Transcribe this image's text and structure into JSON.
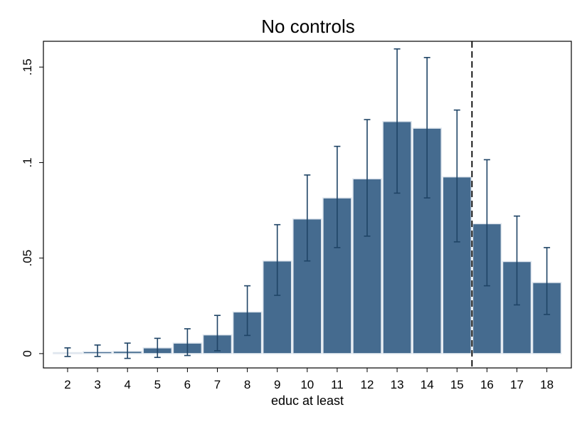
{
  "chart_data": {
    "type": "bar",
    "title": "No controls",
    "xlabel": "educ at least",
    "ylabel": "",
    "categories": [
      "2",
      "3",
      "4",
      "5",
      "6",
      "7",
      "8",
      "9",
      "10",
      "11",
      "12",
      "13",
      "14",
      "15",
      "16",
      "17",
      "18"
    ],
    "values": [
      0.0005,
      0.001,
      0.0012,
      0.003,
      0.0055,
      0.0098,
      0.0218,
      0.0485,
      0.0705,
      0.0815,
      0.0915,
      0.1215,
      0.118,
      0.0925,
      0.068,
      0.0482,
      0.0372
    ],
    "ci_low": [
      -0.0015,
      -0.0015,
      -0.0025,
      -0.002,
      -0.001,
      0.0015,
      0.0095,
      0.0305,
      0.0485,
      0.0555,
      0.0615,
      0.084,
      0.0815,
      0.0585,
      0.0355,
      0.0255,
      0.0205
    ],
    "ci_high": [
      0.003,
      0.0045,
      0.0055,
      0.008,
      0.013,
      0.02,
      0.0355,
      0.0675,
      0.0935,
      0.1085,
      0.1225,
      0.1595,
      0.155,
      0.1275,
      0.1015,
      0.072,
      0.0555
    ],
    "ylim": [
      -0.0075,
      0.1635
    ],
    "yticks": [
      0,
      0.05,
      0.1,
      0.15
    ],
    "ytick_labels": [
      "0",
      ".05",
      ".1",
      ".15"
    ],
    "reference_line": {
      "x_after_category": "15",
      "style": "dashed"
    },
    "grid": false,
    "legend": "none",
    "colors": {
      "bar": "#456b8f",
      "bar_edge": "#dfe6ee",
      "error": "#1f4466",
      "axis": "#000000"
    }
  }
}
